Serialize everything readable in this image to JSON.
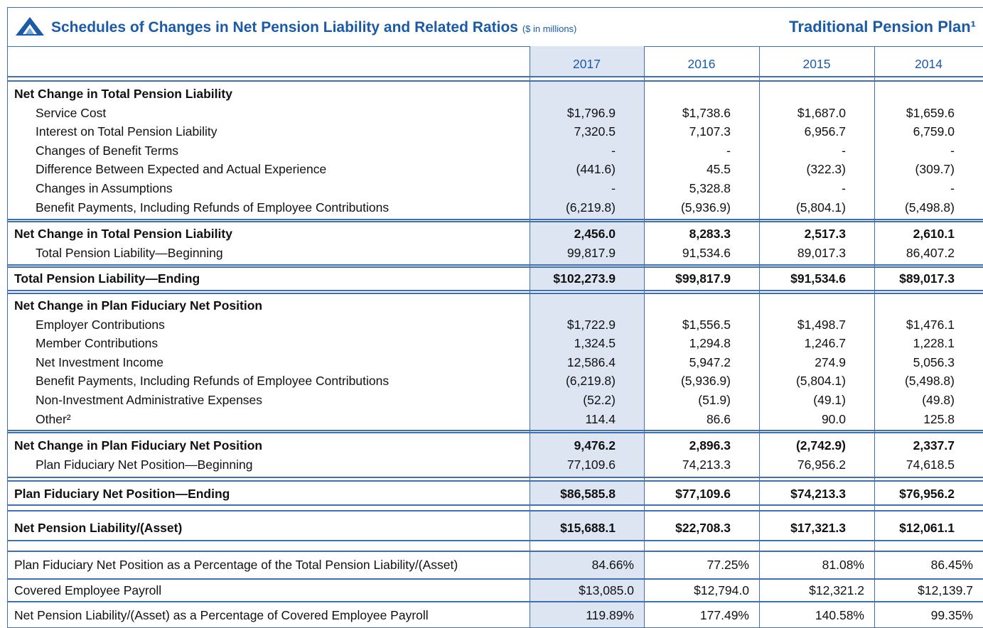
{
  "header": {
    "title": "Schedules of Changes in Net Pension Liability and Related Ratios",
    "subtitle": "($ in millions)",
    "plan": "Traditional Pension Plan¹"
  },
  "table": {
    "years": [
      "2017",
      "2016",
      "2015",
      "2014"
    ],
    "blocks": [
      {
        "rows": [
          [
            "Net Change in Total Pension Liability"
          ],
          [
            "Service Cost",
            "$1,796.9",
            "$1,738.6",
            "$1,687.0",
            "$1,659.6"
          ],
          [
            "Interest on Total Pension Liability",
            "7,320.5",
            "7,107.3",
            "6,956.7",
            "6,759.0"
          ],
          [
            "Changes of Benefit Terms",
            "-",
            "-",
            "-",
            "-"
          ],
          [
            "Difference Between Expected and Actual Experience",
            "(441.6)",
            "45.5",
            "(322.3)",
            "(309.7)"
          ],
          [
            "Changes in Assumptions",
            "-",
            "5,328.8",
            "-",
            "-"
          ],
          [
            "Benefit Payments, Including Refunds of Employee Contributions",
            "(6,219.8)",
            "(5,936.9)",
            "(5,804.1)",
            "(5,498.8)"
          ]
        ]
      },
      {
        "rows": [
          [
            "Net Change in Total Pension Liability",
            "2,456.0",
            "8,283.3",
            "2,517.3",
            "2,610.1"
          ],
          [
            "Total Pension Liability—Beginning",
            "99,817.9",
            "91,534.6",
            "89,017.3",
            "86,407.2"
          ]
        ]
      },
      {
        "rows": [
          [
            "Total Pension Liability—Ending",
            "$102,273.9",
            "$99,817.9",
            "$91,534.6",
            "$89,017.3"
          ]
        ]
      },
      {
        "rows": [
          [
            "Net Change in Plan Fiduciary Net Position"
          ],
          [
            "Employer Contributions",
            "$1,722.9",
            "$1,556.5",
            "$1,498.7",
            "$1,476.1"
          ],
          [
            "Member Contributions",
            "1,324.5",
            "1,294.8",
            "1,246.7",
            "1,228.1"
          ],
          [
            "Net Investment Income",
            "12,586.4",
            "5,947.2",
            "274.9",
            "5,056.3"
          ],
          [
            "Benefit Payments, Including Refunds of Employee Contributions",
            "(6,219.8)",
            "(5,936.9)",
            "(5,804.1)",
            "(5,498.8)"
          ],
          [
            "Non-Investment Administrative Expenses",
            "(52.2)",
            "(51.9)",
            "(49.1)",
            "(49.8)"
          ],
          [
            "Other²",
            "114.4",
            "86.6",
            "90.0",
            "125.8"
          ]
        ]
      },
      {
        "rows": [
          [
            "Net Change in Plan Fiduciary Net Position",
            "9,476.2",
            "2,896.3",
            "(2,742.9)",
            "2,337.7"
          ],
          [
            "Plan Fiduciary Net Position—Beginning",
            "77,109.6",
            "74,213.3",
            "76,956.2",
            "74,618.5"
          ]
        ]
      },
      {
        "rows": [
          [
            "Plan Fiduciary Net Position—Ending",
            "$86,585.8",
            "$77,109.6",
            "$74,213.3",
            "$76,956.2"
          ]
        ]
      },
      {
        "rows": [
          [
            "Net Pension Liability/(Asset)",
            "$15,688.1",
            "$22,708.3",
            "$17,321.3",
            "$12,061.1"
          ]
        ]
      },
      {
        "rows": [
          [
            "Plan Fiduciary Net Position as a Percentage of the Total Pension Liability/(Asset)",
            "84.66%",
            "77.25%",
            "81.08%",
            "86.45%"
          ]
        ]
      },
      {
        "rows": [
          [
            "Covered Employee Payroll",
            "$13,085.0",
            "$12,794.0",
            "$12,321.2",
            "$12,139.7"
          ]
        ]
      },
      {
        "rows": [
          [
            "Net Pension Liability/(Asset) as a Percentage of Covered Employee Payroll",
            "119.89%",
            "177.49%",
            "140.58%",
            "99.35%"
          ]
        ]
      }
    ]
  }
}
